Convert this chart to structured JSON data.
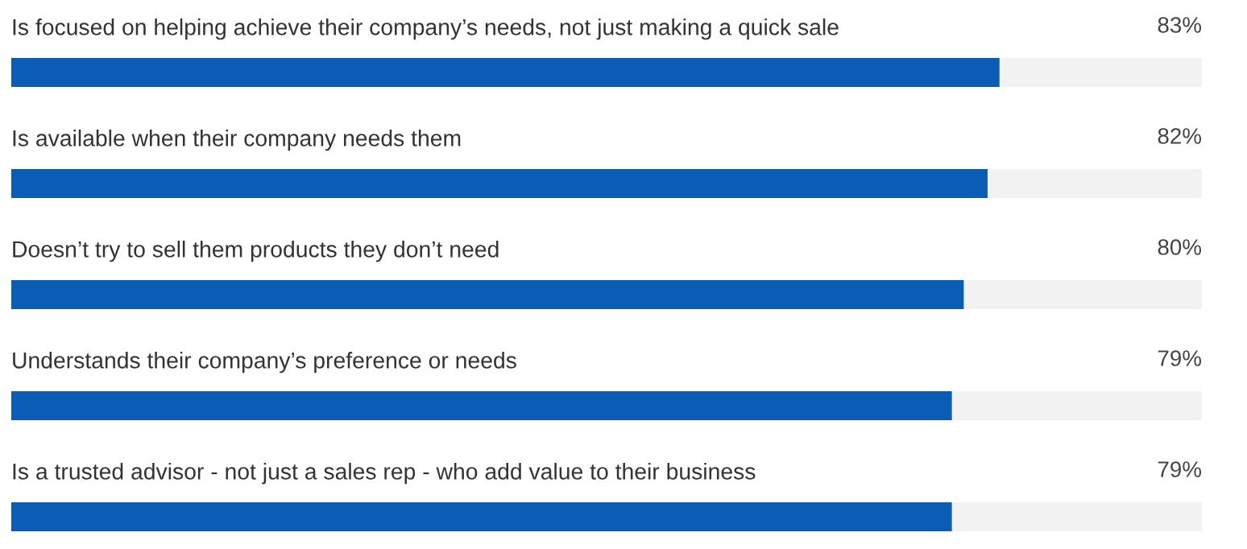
{
  "chart_data": {
    "type": "bar",
    "orientation": "horizontal",
    "categories": [
      "Is focused on helping achieve their company’s needs, not just making a quick sale",
      "Is available when their company needs them",
      "Doesn’t try to sell them products they don’t need",
      "Understands their company’s preference or needs",
      "Is a trusted advisor - not just a sales rep - who add value to their business"
    ],
    "values": [
      83,
      82,
      80,
      79,
      79
    ],
    "value_labels": [
      "83%",
      "82%",
      "80%",
      "79%",
      "79%"
    ],
    "color": "#0b5cb5",
    "xlim": [
      0,
      100
    ]
  }
}
